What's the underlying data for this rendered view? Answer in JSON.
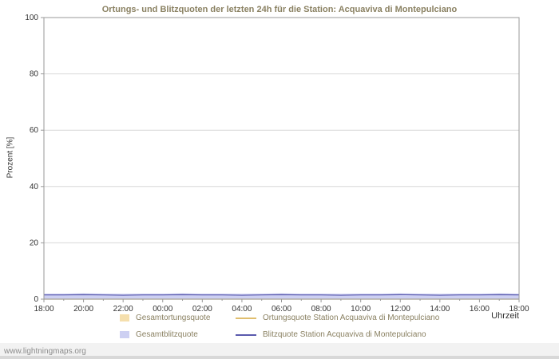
{
  "title": "Ortungs- und Blitzquoten der letzten 24h für die Station: Acquaviva di Montepulciano",
  "axes": {
    "y_label": "Prozent  [%]",
    "x_label": "Uhrzeit"
  },
  "footer": {
    "link": "www.lightningmaps.org"
  },
  "colors": {
    "title_text": "#8a8162",
    "grid": "#d8d8d8",
    "plot_border": "#999999",
    "tick_text": "#333333"
  },
  "chart_data": {
    "type": "area",
    "title": "Ortungs- und Blitzquoten der letzten 24h für die Station: Acquaviva di Montepulciano",
    "xlabel": "Uhrzeit",
    "ylabel": "Prozent  [%]",
    "ylim": [
      0,
      100
    ],
    "yticks": [
      0,
      20,
      40,
      60,
      80,
      100
    ],
    "x": [
      "18:00",
      "20:00",
      "22:00",
      "00:00",
      "02:00",
      "04:00",
      "06:00",
      "08:00",
      "10:00",
      "12:00",
      "14:00",
      "16:00",
      "18:00"
    ],
    "grid": true,
    "legend_position": "bottom",
    "series": [
      {
        "name": "Gesamtortungsquote",
        "type": "area",
        "color": "#f5dfad",
        "values": [
          0,
          0,
          0,
          0,
          0,
          0,
          0,
          0,
          0,
          0,
          0,
          0,
          0,
          0,
          0,
          0,
          0,
          0,
          0,
          0,
          0,
          0,
          0,
          0,
          0
        ]
      },
      {
        "name": "Ortungsquote Station Acquaviva di Montepulciano",
        "type": "line",
        "color": "#e0be6e",
        "values": [
          0,
          0,
          0,
          0,
          0,
          0,
          0,
          0,
          0,
          0,
          0,
          0,
          0,
          0,
          0,
          0,
          0,
          0,
          0,
          0,
          0,
          0,
          0,
          0,
          0
        ]
      },
      {
        "name": "Gesamtblitzquote",
        "type": "area",
        "color": "#cdd0f2",
        "values": [
          2,
          2,
          2.1,
          2,
          1.9,
          2,
          2,
          2.1,
          2,
          2,
          1.9,
          2,
          2.1,
          2,
          2,
          1.9,
          2,
          2,
          2.1,
          2,
          1.9,
          2,
          2,
          2.1,
          2
        ]
      },
      {
        "name": "Blitzquote Station Acquaviva di Montepulciano",
        "type": "line",
        "color": "#5a5aad",
        "values": [
          1.5,
          1.5,
          1.6,
          1.5,
          1.4,
          1.5,
          1.5,
          1.6,
          1.5,
          1.5,
          1.4,
          1.5,
          1.6,
          1.5,
          1.5,
          1.4,
          1.5,
          1.5,
          1.6,
          1.5,
          1.4,
          1.5,
          1.5,
          1.6,
          1.5
        ]
      }
    ]
  }
}
